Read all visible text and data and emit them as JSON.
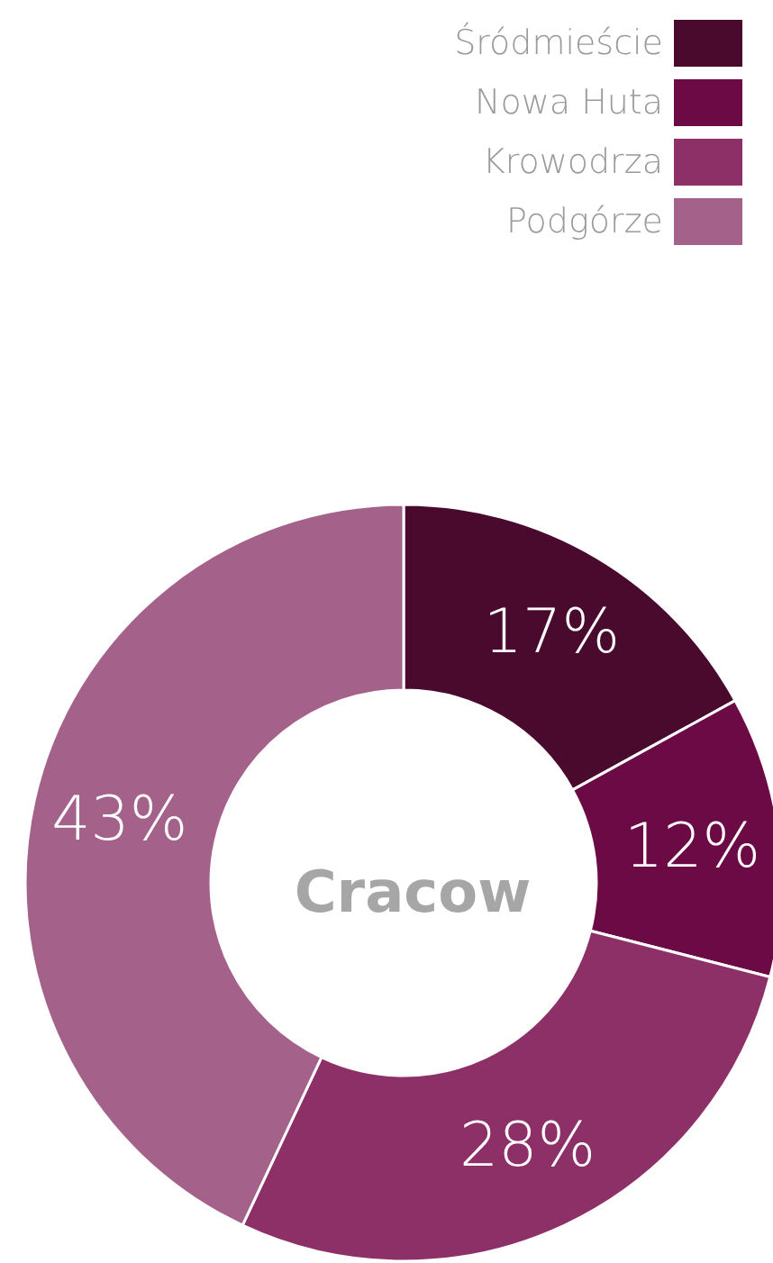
{
  "chart_data": {
    "type": "donut",
    "title": "Cracow",
    "categories": [
      "Śródmieście",
      "Nowa Huta",
      "Krowodrza",
      "Podgórze"
    ],
    "values": [
      17,
      12,
      28,
      43
    ],
    "colors": [
      "#4a0a2e",
      "#6b0a45",
      "#8e3068",
      "#a4628a"
    ],
    "value_labels": [
      "17%",
      "12%",
      "28%",
      "43%"
    ],
    "legend": "top right"
  }
}
